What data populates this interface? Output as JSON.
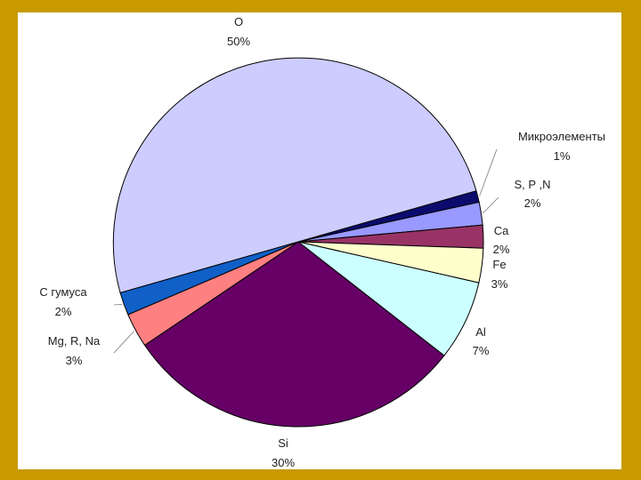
{
  "chart_data": {
    "type": "pie",
    "title": "",
    "slices": [
      {
        "name": "Микроэлементы",
        "value": 1,
        "label": "1%",
        "color": "#0b0b6e"
      },
      {
        "name": "S, P ,N",
        "value": 2,
        "label": "2%",
        "color": "#9999ff"
      },
      {
        "name": "Ca",
        "value": 2,
        "label": "2%",
        "color": "#993366"
      },
      {
        "name": "Fe",
        "value": 3,
        "label": "3%",
        "color": "#ffffcc"
      },
      {
        "name": "Al",
        "value": 7,
        "label": "7%",
        "color": "#ccffff"
      },
      {
        "name": "Si",
        "value": 30,
        "label": "30%",
        "color": "#660066"
      },
      {
        "name": "Mg, R, Na",
        "value": 3,
        "label": "3%",
        "color": "#ff8080"
      },
      {
        "name": "C гумуса",
        "value": 2,
        "label": "2%",
        "color": "#1060c8"
      },
      {
        "name": "O",
        "value": 50,
        "label": "50%",
        "color": "#ccccff"
      }
    ]
  },
  "colors": {
    "frame_outer": "#c89a00",
    "frame_inner": "#fff6d8"
  }
}
